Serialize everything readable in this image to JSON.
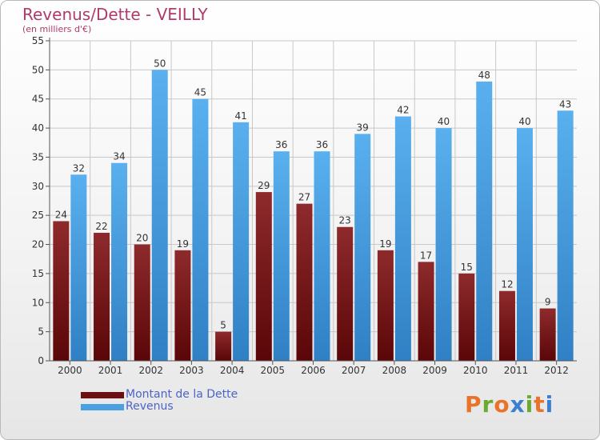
{
  "title": "Revenus/Dette - VEILLY",
  "subtitle": "(en milliers d'€)",
  "legend": {
    "debt_label": "Montant de la Dette",
    "revenue_label": "Revenus"
  },
  "logo": {
    "text": "Proxiti",
    "letters": [
      "P",
      "r",
      "o",
      "x",
      "i",
      "t",
      "i"
    ],
    "colors": [
      "#e8732a",
      "#6aaa2e",
      "#e8732a",
      "#3a7fd0",
      "#6aaa2e",
      "#e8732a",
      "#3a7fd0"
    ]
  },
  "colors": {
    "debt": "#7a1518",
    "revenue": "#4aa0e0",
    "title": "#b03a6a",
    "legend_text": "#4a64c8"
  },
  "chart_data": {
    "type": "bar",
    "title": "Revenus/Dette - VEILLY",
    "subtitle": "(en milliers d'€)",
    "categories": [
      "2000",
      "2001",
      "2002",
      "2003",
      "2004",
      "2005",
      "2006",
      "2007",
      "2008",
      "2009",
      "2010",
      "2011",
      "2012"
    ],
    "series": [
      {
        "name": "Montant de la Dette",
        "values": [
          24,
          22,
          20,
          19,
          5,
          29,
          27,
          23,
          19,
          17,
          15,
          12,
          9
        ]
      },
      {
        "name": "Revenus",
        "values": [
          32,
          34,
          50,
          45,
          41,
          36,
          36,
          39,
          42,
          40,
          48,
          40,
          43
        ]
      }
    ],
    "ylim": [
      0,
      55
    ],
    "yticks": [
      0,
      5,
      10,
      15,
      20,
      25,
      30,
      35,
      40,
      45,
      50,
      55
    ],
    "xlabel": "",
    "ylabel": "",
    "grid": true,
    "legend_position": "bottom-left"
  }
}
